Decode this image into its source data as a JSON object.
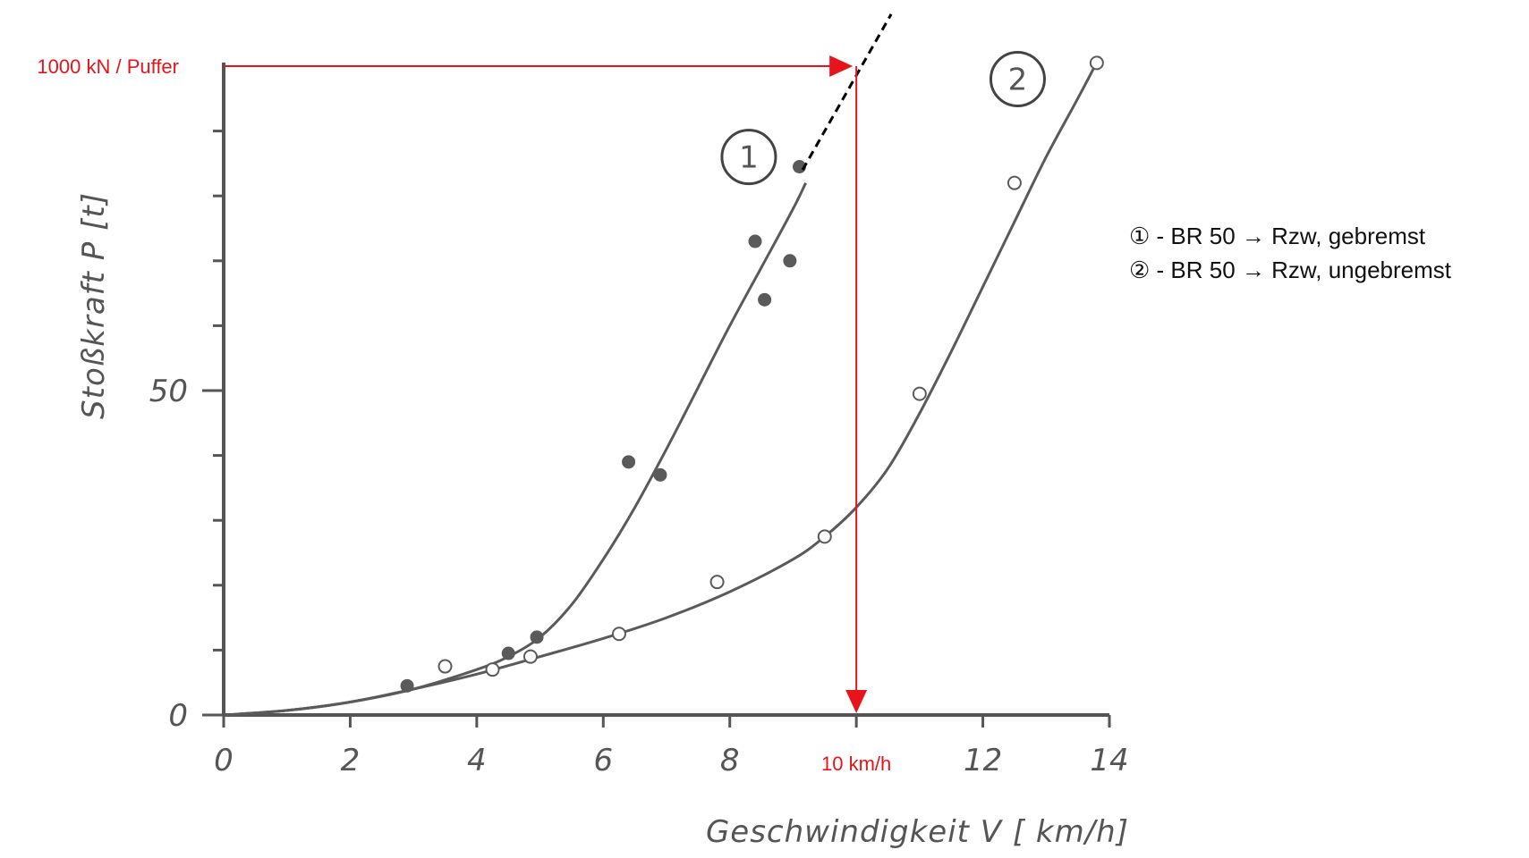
{
  "chart_data": {
    "type": "scatter",
    "xlabel": "Geschwindigkeit V [ km/h]",
    "ylabel": "Stoßkraft P [t]",
    "xlim": [
      0,
      14
    ],
    "ylim": [
      0,
      100
    ],
    "x_ticks": [
      0,
      2,
      4,
      6,
      8,
      10,
      12,
      14
    ],
    "x_tick_labels": [
      "0",
      "2",
      "4",
      "6",
      "8",
      "",
      "12",
      "14"
    ],
    "y_ticks": [
      0,
      50
    ],
    "y_minor_ticks": [
      10,
      20,
      30,
      40,
      60,
      70,
      80,
      90
    ],
    "y_tick_labels": [
      "0",
      "50"
    ],
    "grid": false,
    "series": [
      {
        "name": "1",
        "marker": "filled",
        "points": [
          [
            2.9,
            4.5
          ],
          [
            4.5,
            9.5
          ],
          [
            4.95,
            12
          ],
          [
            6.4,
            39
          ],
          [
            6.9,
            37
          ],
          [
            8.4,
            73
          ],
          [
            8.55,
            64
          ],
          [
            8.95,
            70
          ],
          [
            9.1,
            84.5
          ]
        ],
        "fit": [
          [
            0,
            0
          ],
          [
            1,
            0.7
          ],
          [
            2,
            2
          ],
          [
            3,
            4
          ],
          [
            4,
            7
          ],
          [
            4.5,
            9
          ],
          [
            5,
            12
          ],
          [
            5.5,
            17
          ],
          [
            6,
            24
          ],
          [
            6.5,
            32
          ],
          [
            7,
            41
          ],
          [
            7.5,
            50.5
          ],
          [
            8,
            60
          ],
          [
            8.5,
            69
          ],
          [
            9,
            78
          ],
          [
            9.2,
            82
          ]
        ]
      },
      {
        "name": "2",
        "marker": "open",
        "points": [
          [
            3.5,
            7.5
          ],
          [
            4.25,
            7
          ],
          [
            4.85,
            9
          ],
          [
            6.25,
            12.5
          ],
          [
            7.8,
            20.5
          ],
          [
            9.5,
            27.5
          ],
          [
            11,
            49.5
          ],
          [
            12.5,
            82
          ],
          [
            13.8,
            100.5
          ]
        ],
        "fit": [
          [
            0,
            0
          ],
          [
            1,
            0.7
          ],
          [
            2,
            2
          ],
          [
            3,
            4
          ],
          [
            4,
            6.3
          ],
          [
            5,
            9
          ],
          [
            6,
            11.8
          ],
          [
            7,
            15
          ],
          [
            8,
            19
          ],
          [
            9,
            24
          ],
          [
            9.5,
            27.5
          ],
          [
            10,
            32
          ],
          [
            10.5,
            38
          ],
          [
            11,
            46.5
          ],
          [
            11.5,
            56
          ],
          [
            12,
            66
          ],
          [
            12.5,
            76
          ],
          [
            13,
            86
          ],
          [
            13.5,
            95
          ],
          [
            13.85,
            101.5
          ]
        ]
      }
    ],
    "extension_line": [
      [
        9.15,
        84
      ],
      [
        10.55,
        108
      ]
    ],
    "annotations": {
      "force_label": "1000 kN / Puffer",
      "force_value": 100,
      "speed_label": "10 km/h",
      "speed_value": 10,
      "series_markers": [
        {
          "text": "1",
          "x": 8.3,
          "y": 86
        },
        {
          "text": "2",
          "x": 12.55,
          "y": 98
        }
      ]
    },
    "colors": {
      "axis": "#555555",
      "curve": "#5a5a5a",
      "annotation": "#e8141b",
      "extension": "#000000"
    }
  },
  "legend": {
    "items": [
      {
        "symbol": "①",
        "text": " - BR 50 → Rzw, gebremst"
      },
      {
        "symbol": "②",
        "text": " - BR 50 → Rzw, ungebremst"
      }
    ]
  }
}
